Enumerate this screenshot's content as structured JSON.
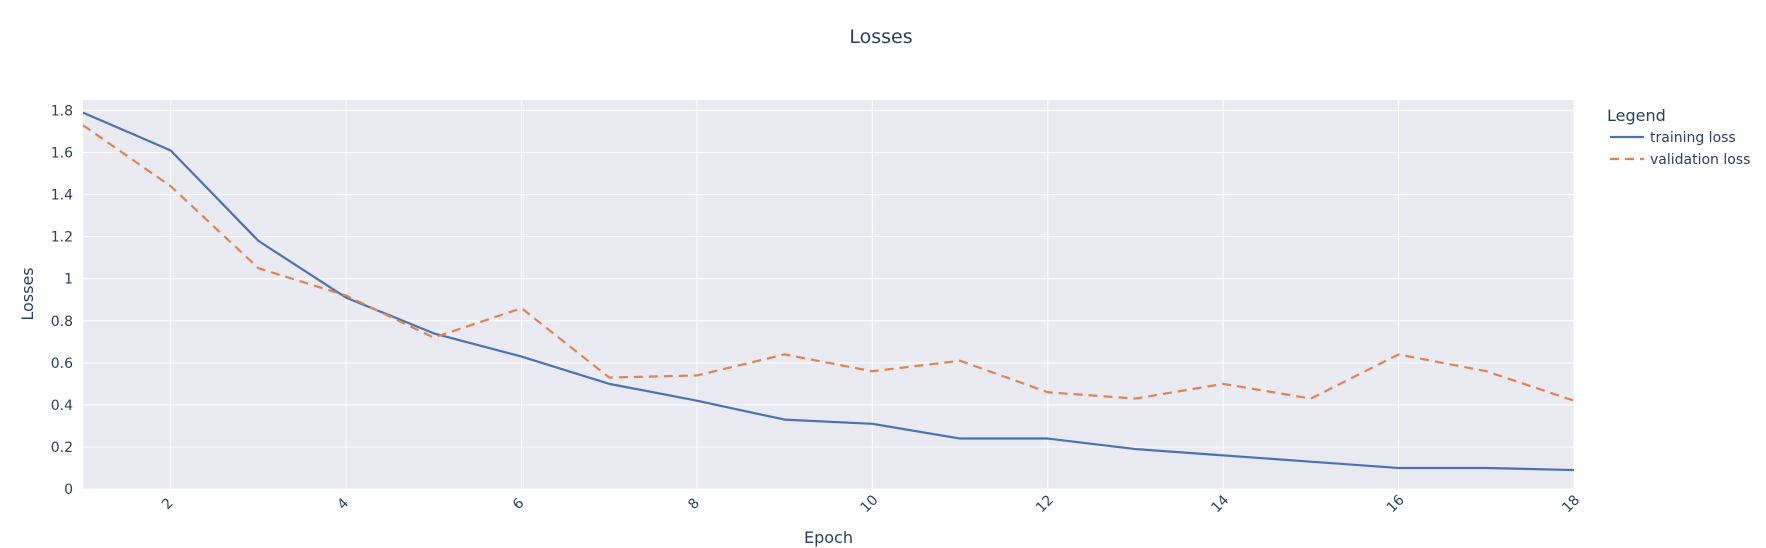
{
  "chart_data": {
    "type": "line",
    "title": "Losses",
    "xlabel": "Epoch",
    "ylabel": "Losses",
    "xlim": [
      1,
      18
    ],
    "ylim": [
      0,
      1.85
    ],
    "x": [
      1,
      2,
      3,
      4,
      5,
      6,
      7,
      8,
      9,
      10,
      11,
      12,
      13,
      14,
      15,
      16,
      17,
      18
    ],
    "x_ticks": [
      2,
      4,
      6,
      8,
      10,
      12,
      14,
      16,
      18
    ],
    "y_ticks": [
      0,
      0.2,
      0.4,
      0.6,
      0.8,
      1,
      1.2,
      1.4,
      1.6,
      1.8
    ],
    "y_tick_labels": [
      "0",
      "0.2",
      "0.4",
      "0.6",
      "0.8",
      "1",
      "1.2",
      "1.4",
      "1.6",
      "1.8"
    ],
    "grid": true,
    "legend": {
      "title": "Legend",
      "placement": "right"
    },
    "series": [
      {
        "name": "training loss",
        "color": "#4c72b0",
        "dash": "solid",
        "values": [
          1.79,
          1.61,
          1.18,
          0.91,
          0.74,
          0.63,
          0.5,
          0.42,
          0.33,
          0.31,
          0.24,
          0.24,
          0.19,
          0.16,
          0.13,
          0.1,
          0.1,
          0.09
        ]
      },
      {
        "name": "validation loss",
        "color": "#dd8452",
        "dash": "dashed",
        "values": [
          1.73,
          1.44,
          1.05,
          0.92,
          0.72,
          0.86,
          0.53,
          0.54,
          0.64,
          0.56,
          0.61,
          0.46,
          0.43,
          0.5,
          0.43,
          0.64,
          0.56,
          0.42
        ]
      }
    ],
    "colors": {
      "plot_bg": "#eaeaf2",
      "grid": "#ffffff"
    }
  }
}
